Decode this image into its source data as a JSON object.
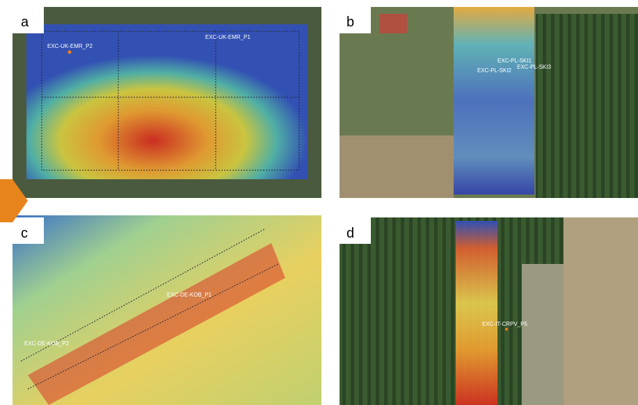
{
  "panels": [
    {
      "label": "a",
      "sites": [
        "EXC-UK-EMR_P2",
        "EXC-UK-EMR_P1"
      ]
    },
    {
      "label": "b",
      "sites": [
        "EXC-PL-SKI1",
        "EXC-PL-SKI2",
        "EXC-PL-SKI3"
      ]
    },
    {
      "label": "c",
      "sites": [
        "EXC-DE-KOB_P1",
        "EXC-DE-KOB_P2"
      ]
    },
    {
      "label": "d",
      "sites": [
        "EXC-IT-CRPV_P5"
      ]
    }
  ]
}
